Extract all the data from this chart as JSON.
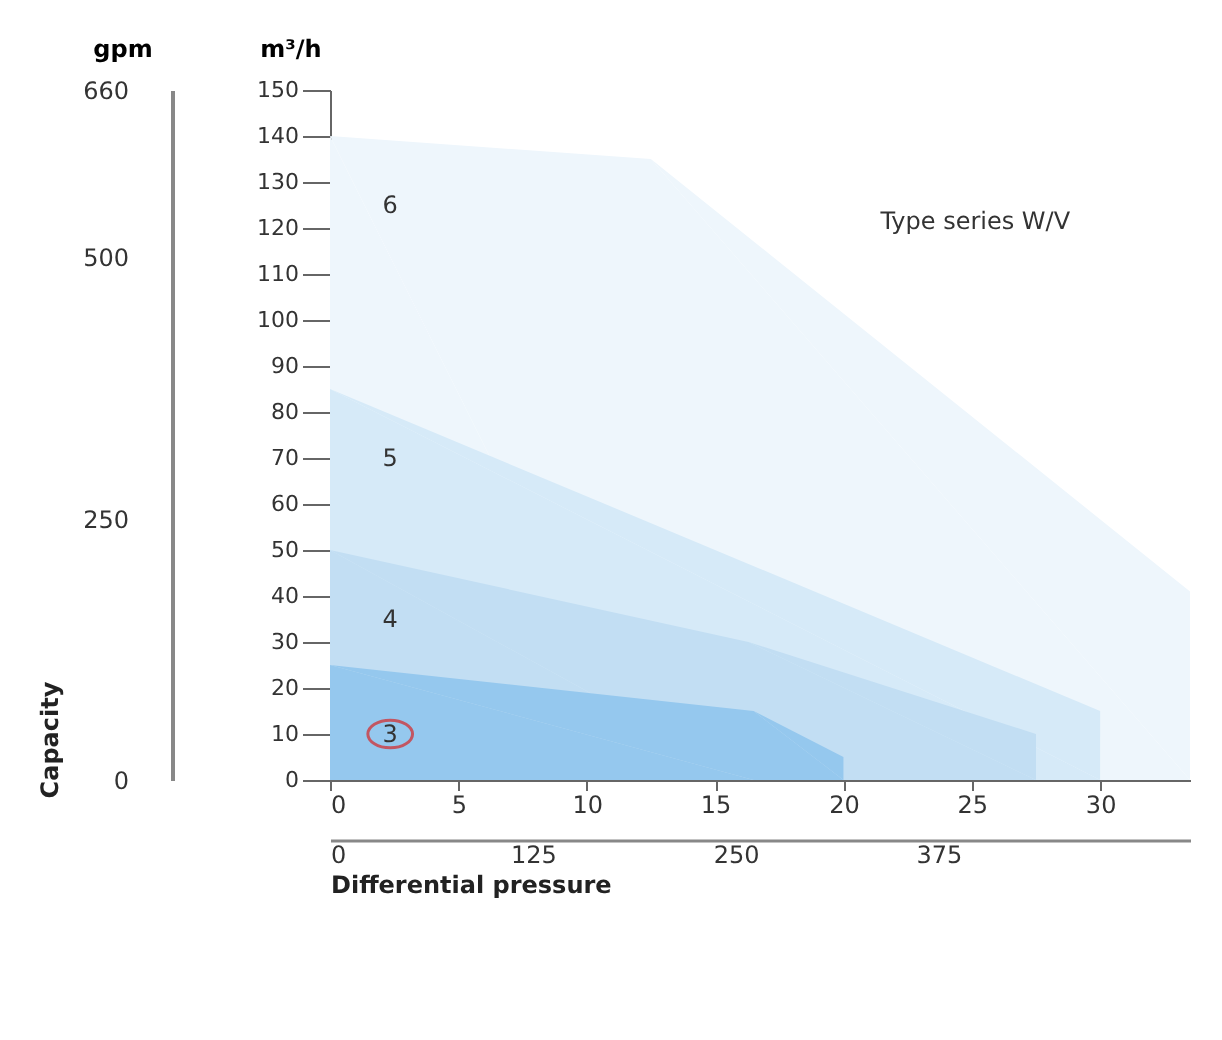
{
  "chart_data": {
    "type": "area",
    "ylabel": "m³/h",
    "y2label": "gpm",
    "x2label": "Differential pressure",
    "xlim": [
      0,
      33.5
    ],
    "xticks": [
      0,
      5,
      10,
      15,
      20,
      25,
      30
    ],
    "ylim": [
      0,
      150
    ],
    "yticks": [
      0,
      10,
      20,
      30,
      40,
      50,
      60,
      70,
      80,
      90,
      100,
      110,
      120,
      130,
      140,
      150
    ],
    "y2lim": [
      0,
      660
    ],
    "y2ticks": [
      0,
      250,
      500,
      660
    ],
    "x2lim": [
      0,
      530
    ],
    "x2ticks": [
      0,
      125,
      250,
      375
    ],
    "grid": false,
    "annotations": [
      "Type series W/V",
      "Capacity"
    ],
    "series": [
      {
        "name": "6",
        "color": "#eef6fc",
        "x": [
          0,
          12.5,
          33.5,
          33.5
        ],
        "values": [
          140,
          135,
          41,
          0
        ]
      },
      {
        "name": "5",
        "color": "#d6eaf8",
        "x": [
          0,
          30,
          30
        ],
        "values": [
          85,
          15,
          0
        ]
      },
      {
        "name": "4",
        "color": "#c2def3",
        "x": [
          0,
          16.3,
          27.5,
          27.5
        ],
        "values": [
          50,
          30,
          10,
          0
        ]
      },
      {
        "name": "3",
        "color": "#95c8ee",
        "x": [
          0,
          16.5,
          20,
          20
        ],
        "values": [
          25,
          15,
          5,
          0
        ]
      }
    ]
  }
}
